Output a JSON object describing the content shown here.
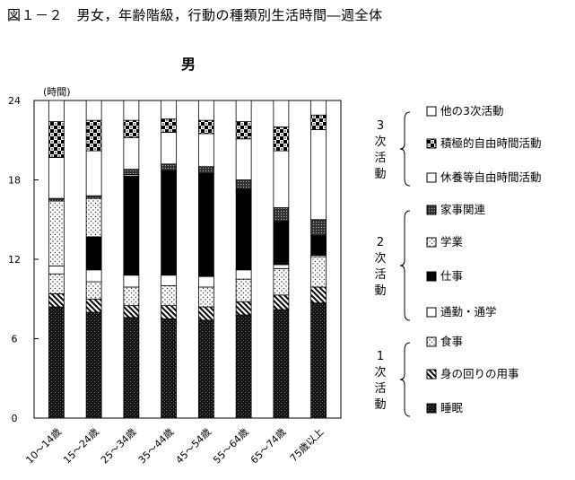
{
  "figure_title": "図１－２　男女，年齢階級，行動の種類別生活時間―週全体",
  "chart_data": {
    "type": "bar",
    "stacked": true,
    "subtitle": "男",
    "y_unit": "(時間)",
    "ylim": [
      0,
      24
    ],
    "yticks": [
      0,
      6,
      12,
      18,
      24
    ],
    "categories": [
      "10～14歳",
      "15～24歳",
      "25～34歳",
      "35～44歳",
      "45～54歳",
      "55～64歳",
      "65～74歳",
      "75歳以上"
    ],
    "series": [
      {
        "name": "睡眠",
        "pattern": "dense-dots",
        "values": [
          8.4,
          8.0,
          7.6,
          7.5,
          7.4,
          7.8,
          8.2,
          8.7
        ]
      },
      {
        "name": "身の回りの用事",
        "pattern": "diagonal",
        "values": [
          1.0,
          1.0,
          0.9,
          1.0,
          1.0,
          1.0,
          1.1,
          1.2
        ]
      },
      {
        "name": "食事",
        "pattern": "light-dots",
        "values": [
          1.5,
          1.3,
          1.4,
          1.5,
          1.5,
          1.7,
          2.0,
          2.3
        ]
      },
      {
        "name": "通勤・通学",
        "pattern": "white",
        "values": [
          0.6,
          0.9,
          0.9,
          0.8,
          0.8,
          0.7,
          0.3,
          0.1
        ]
      },
      {
        "name": "仕事",
        "pattern": "black",
        "values": [
          0.0,
          2.5,
          7.5,
          7.9,
          7.8,
          6.1,
          3.3,
          1.5
        ]
      },
      {
        "name": "学業",
        "pattern": "light-dots",
        "values": [
          4.9,
          2.9,
          0.1,
          0.0,
          0.0,
          0.0,
          0.0,
          0.0
        ]
      },
      {
        "name": "家事関連",
        "pattern": "mid-dots",
        "values": [
          0.2,
          0.2,
          0.4,
          0.5,
          0.5,
          0.7,
          1.0,
          1.2
        ]
      },
      {
        "name": "休養等自由時間活動",
        "pattern": "white",
        "values": [
          3.1,
          3.4,
          2.4,
          2.4,
          2.5,
          3.1,
          4.3,
          6.8
        ]
      },
      {
        "name": "積極的自由時間活動",
        "pattern": "checker",
        "values": [
          2.7,
          2.3,
          1.3,
          1.0,
          1.0,
          1.3,
          1.8,
          1.1
        ]
      },
      {
        "name": "他の3次活動",
        "pattern": "white",
        "values": [
          1.6,
          1.5,
          1.5,
          1.4,
          1.5,
          1.6,
          2.0,
          1.1
        ]
      }
    ],
    "legend_groups": [
      {
        "label": [
          "3",
          "次",
          "活",
          "動"
        ],
        "series_names": [
          "他の3次活動",
          "積極的自由時間活動",
          "休養等自由時間活動"
        ]
      },
      {
        "label": [
          "2",
          "次",
          "活",
          "動"
        ],
        "series_names": [
          "家事関連",
          "学業",
          "仕事",
          "通勤・通学"
        ]
      },
      {
        "label": [
          "1",
          "次",
          "活",
          "動"
        ],
        "series_names": [
          "食事",
          "身の回りの用事",
          "睡眠"
        ]
      }
    ],
    "legend_position": "right",
    "grid": false
  }
}
